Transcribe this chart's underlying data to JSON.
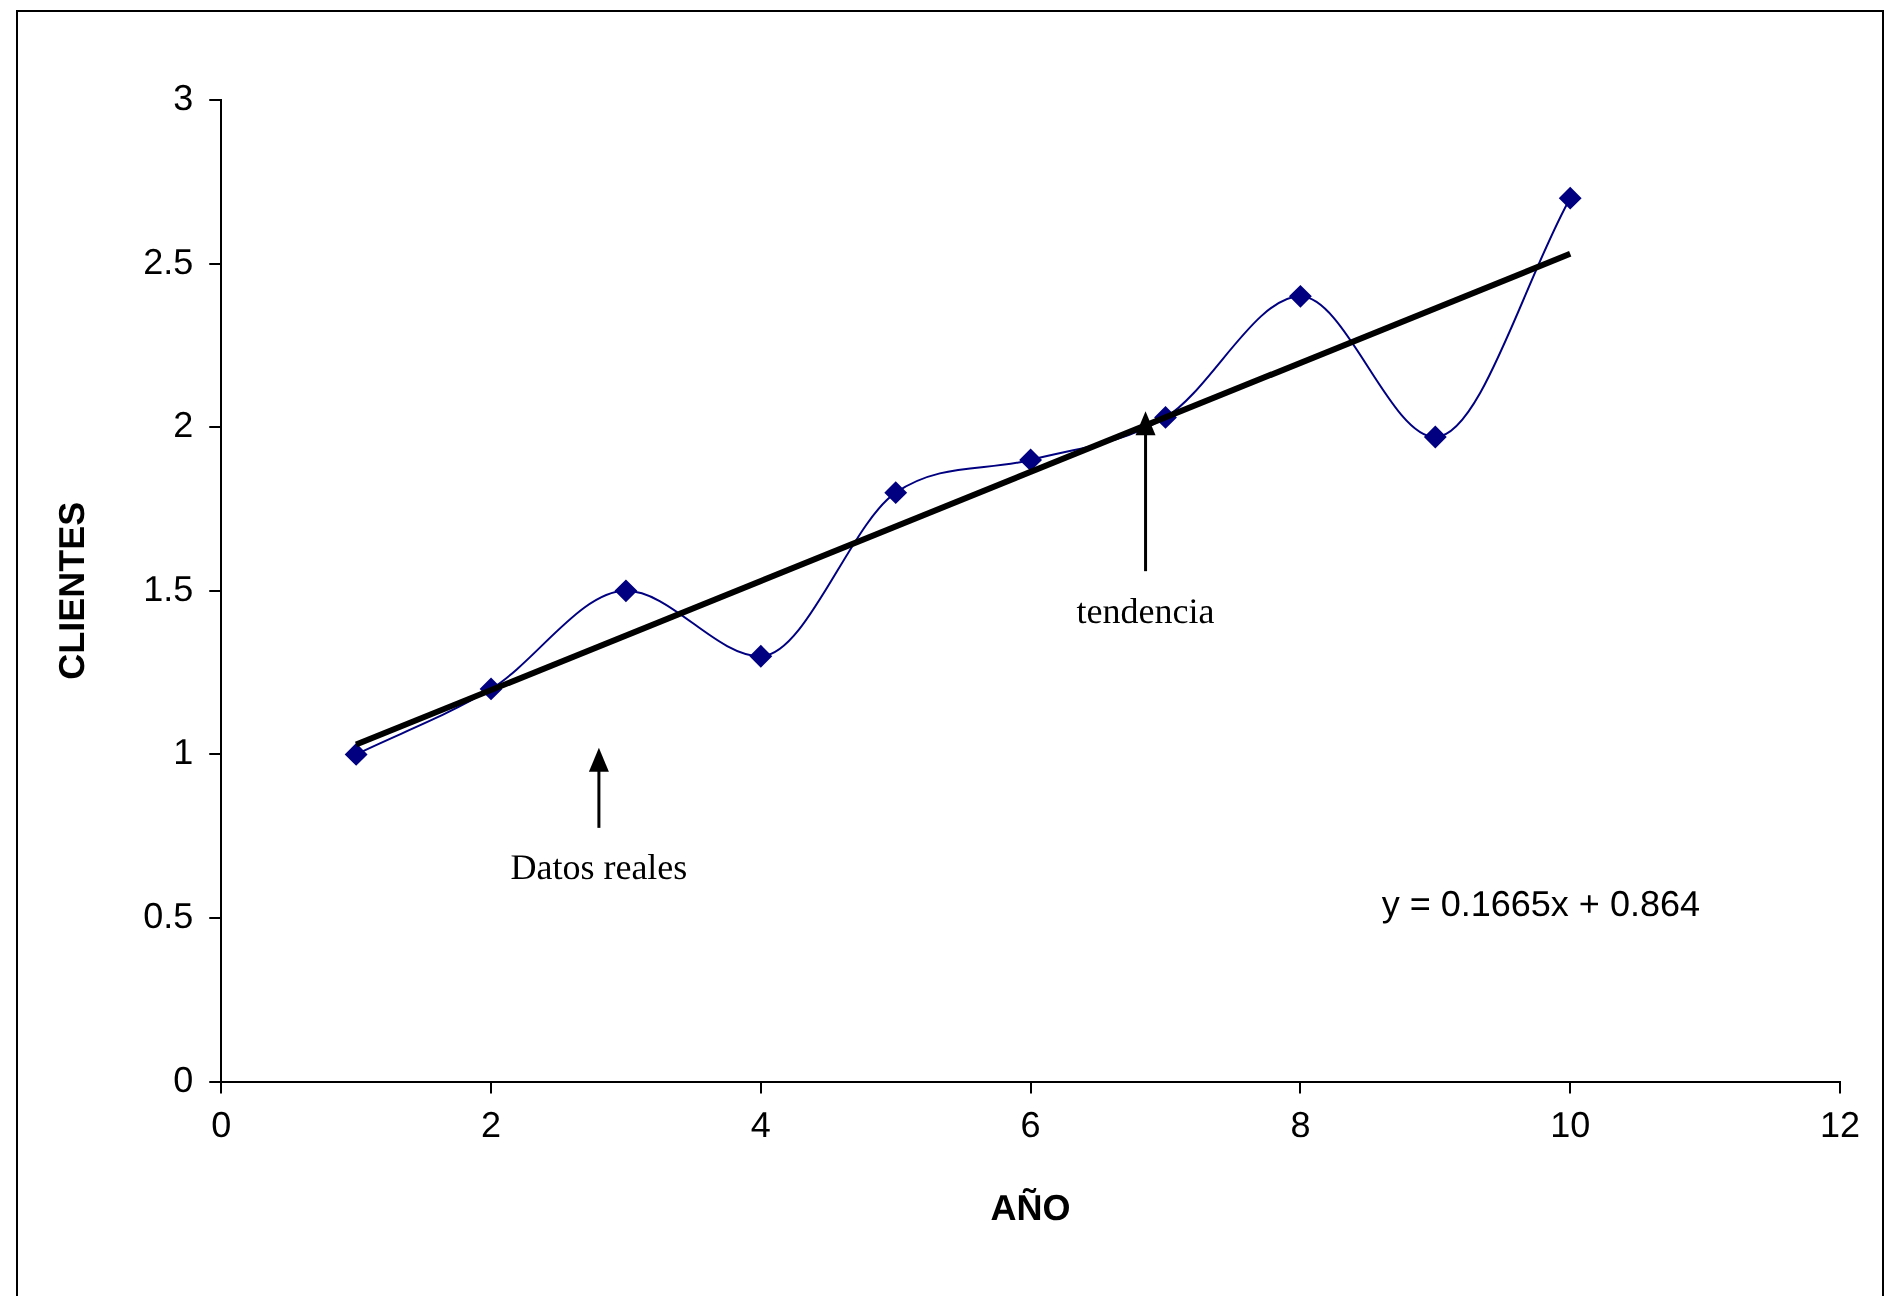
{
  "chart_data": {
    "type": "line",
    "xlabel": "AÑO",
    "ylabel": "CLIENTES",
    "x": [
      1,
      2,
      3,
      4,
      5,
      6,
      7,
      8,
      9,
      10
    ],
    "series": [
      {
        "color": "#000080",
        "marker": "diamond",
        "values": [
          1.0,
          1.2,
          1.5,
          1.3,
          1.8,
          1.9,
          2.03,
          2.4,
          1.97,
          2.7
        ]
      },
      {
        "color": "#000000",
        "marker": "none",
        "x": [
          1,
          10
        ],
        "values": [
          1.03,
          2.53
        ]
      }
    ],
    "xlim": [
      0,
      12
    ],
    "xticks": [
      0,
      2,
      4,
      6,
      8,
      10,
      12
    ],
    "ylim": [
      0,
      3
    ],
    "yticks": [
      0,
      0.5,
      1,
      1.5,
      2,
      2.5,
      3
    ],
    "grid": false,
    "legend": false,
    "annotations": [
      "Datos reales",
      "tendencia",
      "y = 0.1665x + 0.864"
    ]
  }
}
